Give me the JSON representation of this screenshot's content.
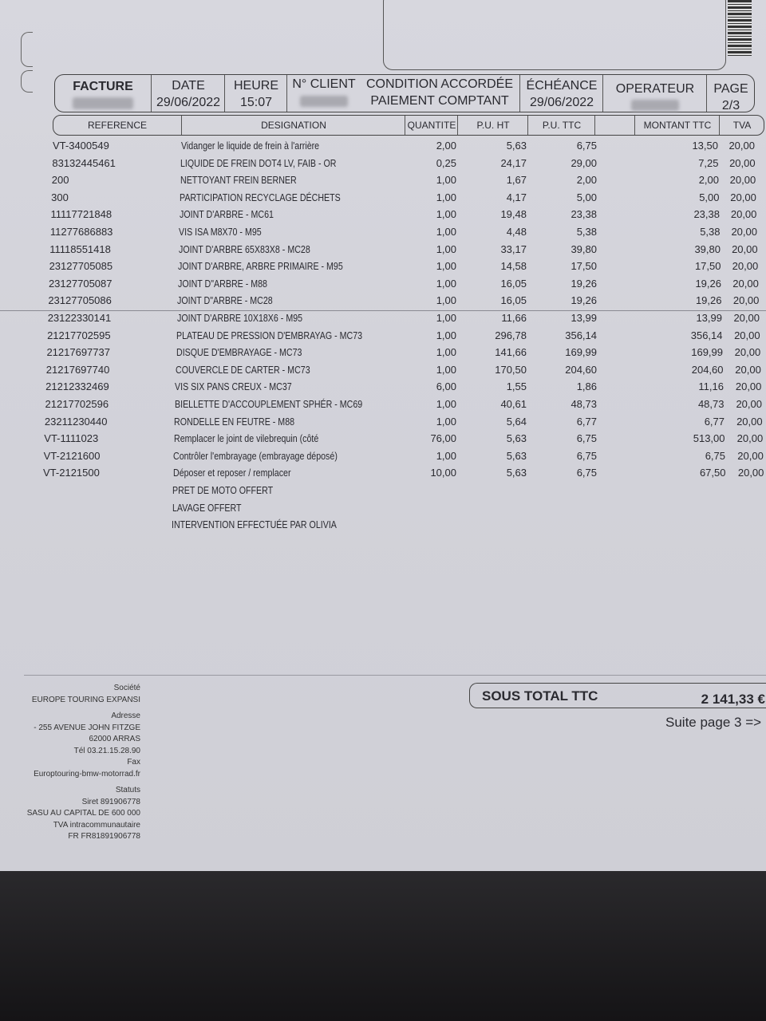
{
  "header": {
    "facture_label": "FACTURE",
    "date_label": "DATE",
    "date_value": "29/06/2022",
    "heure_label": "HEURE",
    "heure_value": "15:07",
    "client_label": "N° CLIENT",
    "condition_label": "CONDITION ACCORDÉE",
    "condition_value": "PAIEMENT COMPTANT",
    "echeance_label": "ÉCHÉANCE",
    "echeance_value": "29/06/2022",
    "operateur_label": "OPERATEUR",
    "page_label": "PAGE",
    "page_value": "2/3"
  },
  "columns": {
    "reference": "REFERENCE",
    "designation": "DESIGNATION",
    "quantite": "QUANTITE",
    "pu_ht": "P.U. HT",
    "pu_ttc": "P.U. TTC",
    "montant_ttc": "MONTANT TTC",
    "tva": "TVA"
  },
  "lines": [
    {
      "ref": "VT-3400549",
      "des": "Vidanger le liquide de frein à l'arrière",
      "qte": "2,00",
      "ht": "5,63",
      "ttc": "6,75",
      "mt": "13,50",
      "tva": "20,00"
    },
    {
      "ref": "83132445461",
      "des": "LIQUIDE DE FREIN DOT4 LV, FAIB - OR",
      "qte": "0,25",
      "ht": "24,17",
      "ttc": "29,00",
      "mt": "7,25",
      "tva": "20,00"
    },
    {
      "ref": "200",
      "des": "NETTOYANT FREIN BERNER",
      "qte": "1,00",
      "ht": "1,67",
      "ttc": "2,00",
      "mt": "2,00",
      "tva": "20,00"
    },
    {
      "ref": "300",
      "des": "PARTICIPATION RECYCLAGE DÉCHETS",
      "qte": "1,00",
      "ht": "4,17",
      "ttc": "5,00",
      "mt": "5,00",
      "tva": "20,00"
    },
    {
      "ref": "11117721848",
      "des": "JOINT D'ARBRE - MC61",
      "qte": "1,00",
      "ht": "19,48",
      "ttc": "23,38",
      "mt": "23,38",
      "tva": "20,00"
    },
    {
      "ref": "11277686883",
      "des": "VIS ISA M8X70 - M95",
      "qte": "1,00",
      "ht": "4,48",
      "ttc": "5,38",
      "mt": "5,38",
      "tva": "20,00"
    },
    {
      "ref": "11118551418",
      "des": "JOINT D'ARBRE 65X83X8 - MC28",
      "qte": "1,00",
      "ht": "33,17",
      "ttc": "39,80",
      "mt": "39,80",
      "tva": "20,00"
    },
    {
      "ref": "23127705085",
      "des": "JOINT D'ARBRE, ARBRE PRIMAIRE - M95",
      "qte": "1,00",
      "ht": "14,58",
      "ttc": "17,50",
      "mt": "17,50",
      "tva": "20,00"
    },
    {
      "ref": "23127705087",
      "des": "JOINT D\"ARBRE - M88",
      "qte": "1,00",
      "ht": "16,05",
      "ttc": "19,26",
      "mt": "19,26",
      "tva": "20,00"
    },
    {
      "ref": "23127705086",
      "des": "JOINT D\"ARBRE - MC28",
      "qte": "1,00",
      "ht": "16,05",
      "ttc": "19,26",
      "mt": "19,26",
      "tva": "20,00"
    },
    {
      "ref": "23122330141",
      "des": "JOINT D'ARBRE 10X18X6 - M95",
      "qte": "1,00",
      "ht": "11,66",
      "ttc": "13,99",
      "mt": "13,99",
      "tva": "20,00"
    },
    {
      "ref": "21217702595",
      "des": "PLATEAU DE PRESSION D'EMBRAYAG - MC73",
      "qte": "1,00",
      "ht": "296,78",
      "ttc": "356,14",
      "mt": "356,14",
      "tva": "20,00"
    },
    {
      "ref": "21217697737",
      "des": "DISQUE D'EMBRAYAGE - MC73",
      "qte": "1,00",
      "ht": "141,66",
      "ttc": "169,99",
      "mt": "169,99",
      "tva": "20,00"
    },
    {
      "ref": "21217697740",
      "des": "COUVERCLE DE CARTER - MC73",
      "qte": "1,00",
      "ht": "170,50",
      "ttc": "204,60",
      "mt": "204,60",
      "tva": "20,00"
    },
    {
      "ref": "21212332469",
      "des": "VIS   SIX PANS CREUX - MC37",
      "qte": "6,00",
      "ht": "1,55",
      "ttc": "1,86",
      "mt": "11,16",
      "tva": "20,00"
    },
    {
      "ref": "21217702596",
      "des": "BIELLETTE D'ACCOUPLEMENT SPHÉR - MC69",
      "qte": "1,00",
      "ht": "40,61",
      "ttc": "48,73",
      "mt": "48,73",
      "tva": "20,00"
    },
    {
      "ref": "23211230440",
      "des": "RONDELLE EN FEUTRE - M88",
      "qte": "1,00",
      "ht": "5,64",
      "ttc": "6,77",
      "mt": "6,77",
      "tva": "20,00"
    },
    {
      "ref": "VT-1111023",
      "des": "Remplacer le joint de vilebrequin (côté",
      "qte": "76,00",
      "ht": "5,63",
      "ttc": "6,75",
      "mt": "513,00",
      "tva": "20,00"
    },
    {
      "ref": "VT-2121600",
      "des": "Contrôler l'embrayage (embrayage déposé)",
      "qte": "1,00",
      "ht": "5,63",
      "ttc": "6,75",
      "mt": "6,75",
      "tva": "20,00"
    },
    {
      "ref": "VT-2121500",
      "des": "Déposer et reposer / remplacer",
      "qte": "10,00",
      "ht": "5,63",
      "ttc": "6,75",
      "mt": "67,50",
      "tva": "20,00"
    },
    {
      "ref": "",
      "des": "PRET DE MOTO OFFERT",
      "qte": "",
      "ht": "",
      "ttc": "",
      "mt": "",
      "tva": ""
    },
    {
      "ref": "",
      "des": "LAVAGE OFFERT",
      "qte": "",
      "ht": "",
      "ttc": "",
      "mt": "",
      "tva": ""
    },
    {
      "ref": "",
      "des": "INTERVENTION EFFECTUÉE PAR OLIVIA",
      "qte": "",
      "ht": "",
      "ttc": "",
      "mt": "",
      "tva": ""
    }
  ],
  "company": {
    "societe_label": "Société",
    "societe": "EUROPE TOURING EXPANSI",
    "adresse_label": "Adresse",
    "adresse1": "- 255 AVENUE JOHN FITZGE",
    "adresse2": "62000 ARRAS",
    "tel": "Tél 03.21.15.28.90",
    "fax_label": "Fax",
    "web": "Europtouring-bmw-motorrad.fr",
    "statuts_label": "Statuts",
    "siret": "Siret 891906778",
    "capital": "SASU AU CAPITAL DE 600 000",
    "tva_label": "TVA intracommunautaire",
    "tva_number": "FR FR81891906778"
  },
  "totals": {
    "sous_total_label": "SOUS TOTAL TTC",
    "sous_total_value": "2 141,33 €",
    "suite": "Suite page 3  =>"
  }
}
